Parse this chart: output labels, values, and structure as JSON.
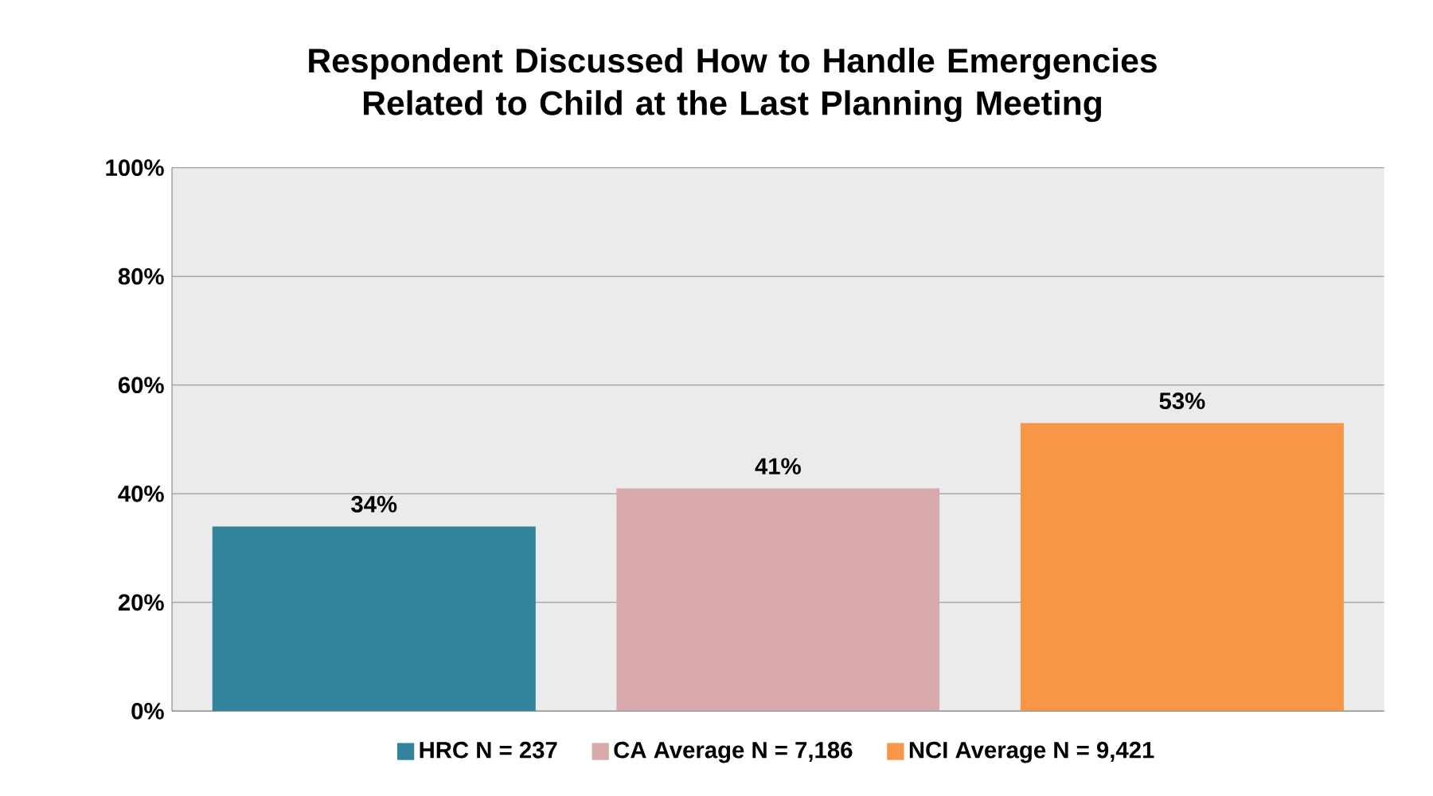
{
  "chart_data": {
    "type": "bar",
    "title": "Respondent Discussed How to Handle Emergencies Related to Child at the Last Planning Meeting",
    "categories": [
      null,
      null,
      null
    ],
    "series": [
      {
        "name": "HRC N = 237",
        "color": "#31849b",
        "values": [
          34,
          null,
          null
        ],
        "value_labels": [
          "34%",
          null,
          null
        ]
      },
      {
        "name": "CA Average N = 7,186",
        "color": "#d9aaab",
        "values": [
          null,
          41,
          null
        ],
        "value_labels": [
          null,
          "41%",
          null
        ]
      },
      {
        "name": "NCI Average N = 9,421",
        "color": "#f79646",
        "values": [
          null,
          null,
          53
        ],
        "value_labels": [
          null,
          null,
          "53%"
        ]
      }
    ],
    "ylim": [
      0,
      100
    ],
    "yticks": [
      {
        "value": 0,
        "label": "0%"
      },
      {
        "value": 20,
        "label": "20%"
      },
      {
        "value": 40,
        "label": "40%"
      },
      {
        "value": 60,
        "label": "60%"
      },
      {
        "value": 80,
        "label": "80%"
      },
      {
        "value": 100,
        "label": "100%"
      }
    ],
    "grid": "y",
    "legend": "bottom"
  }
}
